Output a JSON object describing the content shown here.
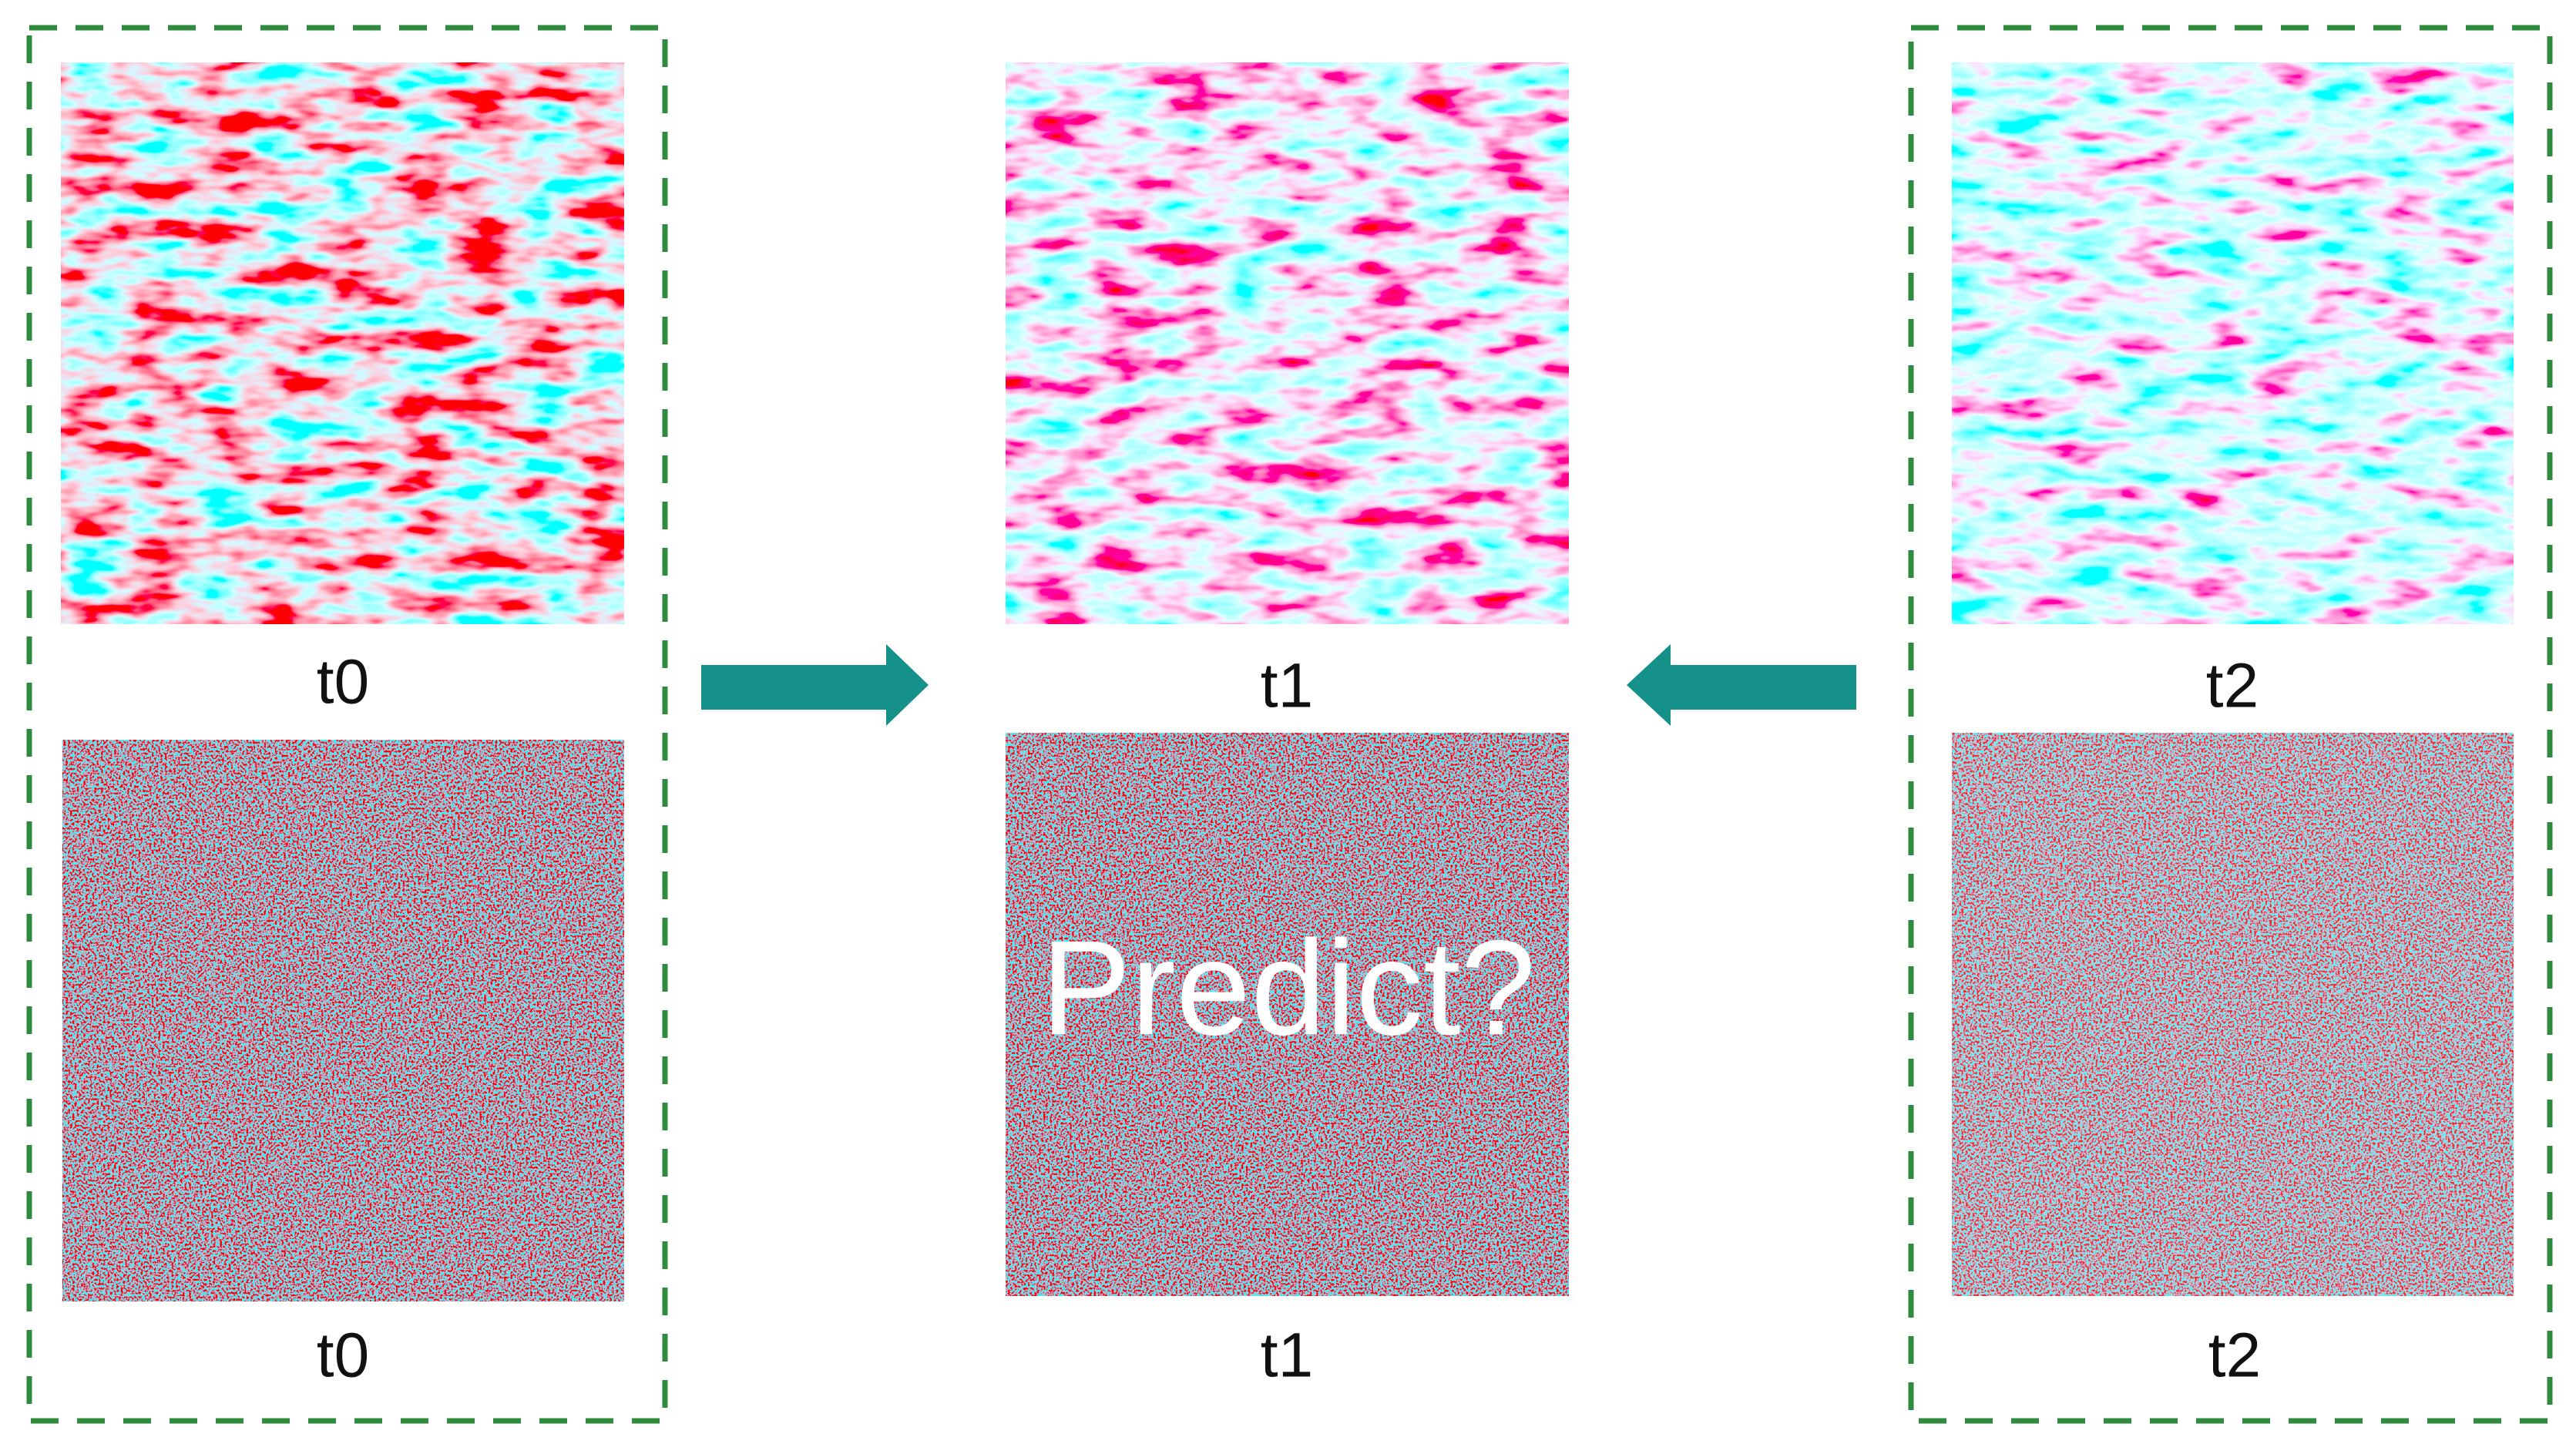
{
  "panels": [
    {
      "top_label": "t0",
      "bottom_label": "t0"
    },
    {
      "top_label": "t1",
      "bottom_label": "t1"
    },
    {
      "top_label": "t2",
      "bottom_label": "t2"
    }
  ],
  "predict_label": "Predict?"
}
